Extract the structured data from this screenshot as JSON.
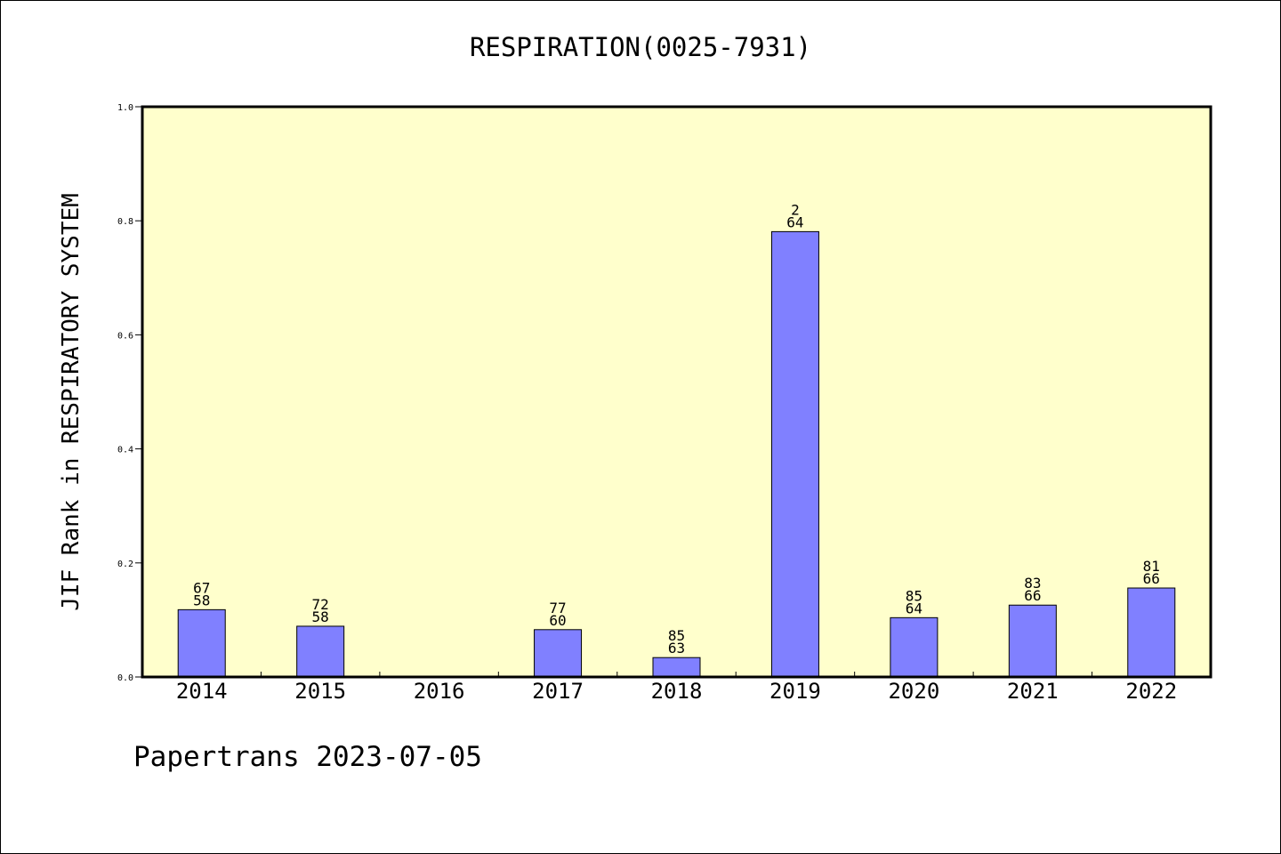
{
  "footer": "Papertrans 2023-07-05",
  "colors": {
    "plot_background": "#ffffcc",
    "bar_fill": "#8080ff",
    "bar_stroke": "#000000"
  },
  "chart_data": {
    "type": "bar",
    "title": "RESPIRATION(0025-7931)",
    "xlabel": "",
    "ylabel": "JIF Rank in RESPIRATORY SYSTEM",
    "ylim": [
      0,
      1.0
    ],
    "yticks": [
      "0.0",
      "0.2",
      "0.4",
      "0.6",
      "0.8",
      "1.0"
    ],
    "categories": [
      "2014",
      "2015",
      "2016",
      "2017",
      "2018",
      "2019",
      "2020",
      "2021",
      "2022"
    ],
    "values": [
      0.118,
      0.089,
      null,
      0.083,
      0.034,
      0.781,
      0.104,
      0.126,
      0.156
    ],
    "rank_labels": [
      "67",
      "72",
      "",
      "77",
      "85",
      "2",
      "85",
      "83",
      "81"
    ],
    "total_labels": [
      "58",
      "58",
      "",
      "60",
      "63",
      "64",
      "64",
      "66",
      "66"
    ],
    "grid": false,
    "legend": "none"
  }
}
